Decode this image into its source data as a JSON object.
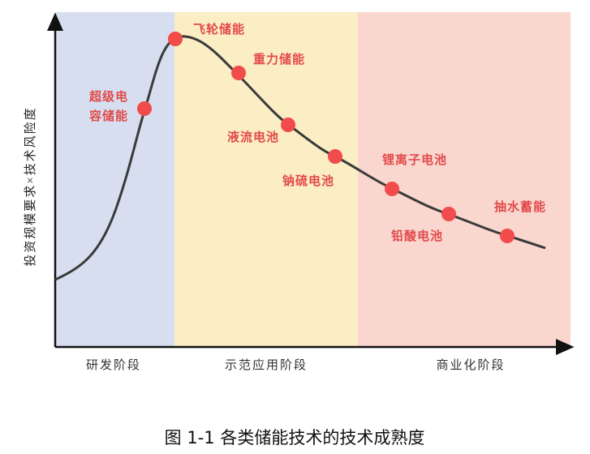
{
  "y_axis_label": "投资规模要求×技术风险度",
  "stages": [
    "研发阶段",
    "示范应用阶段",
    "商业化阶段"
  ],
  "nodes": [
    {
      "lines": [
        "超级电",
        "容储能"
      ]
    },
    {
      "lines": [
        "飞轮储能"
      ]
    },
    {
      "lines": [
        "重力储能"
      ]
    },
    {
      "lines": [
        "液流电池"
      ]
    },
    {
      "lines": [
        "钠硫电池"
      ]
    },
    {
      "lines": [
        "锂离子电池"
      ]
    },
    {
      "lines": [
        "铅酸电池"
      ]
    },
    {
      "lines": [
        "抽水蓄能"
      ]
    }
  ],
  "caption": "图 1-1  各类储能技术的技术成熟度"
}
